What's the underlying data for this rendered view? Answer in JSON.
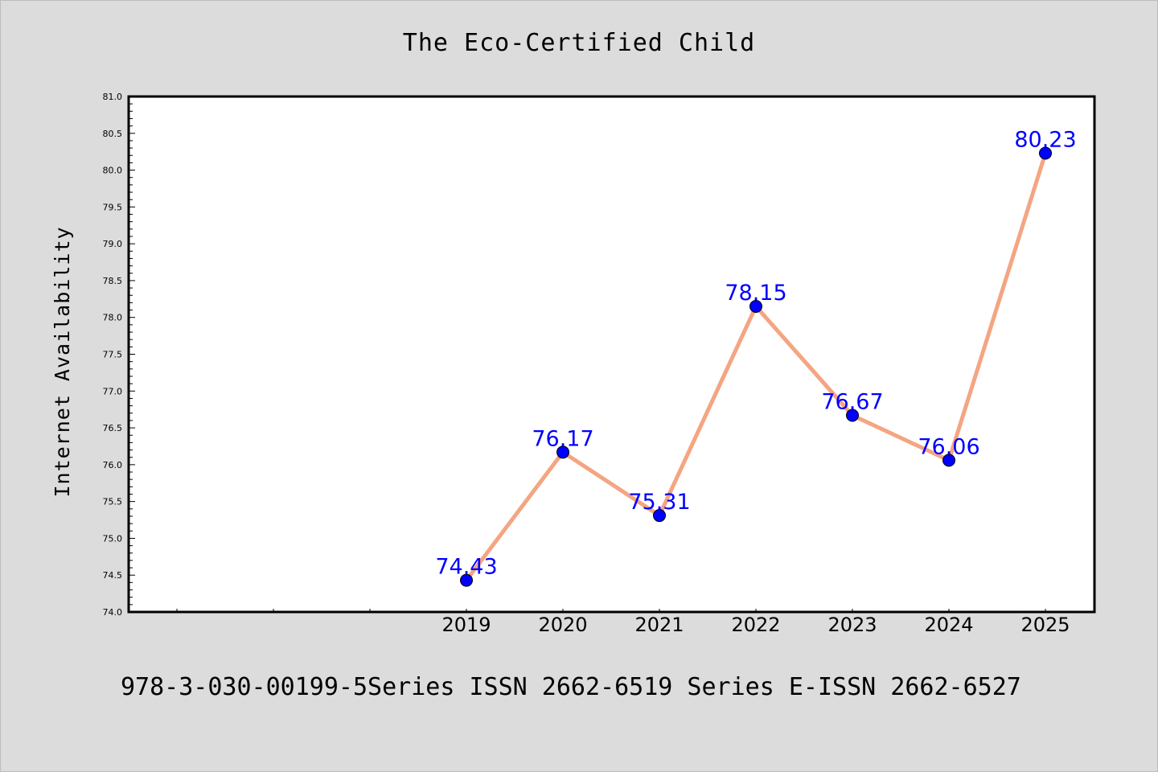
{
  "chart_data": {
    "type": "line",
    "title": "The Eco-Certified Child",
    "xlabel": "",
    "ylabel": "Internet Availability",
    "x": [
      "2019",
      "2020",
      "2021",
      "2022",
      "2023",
      "2024",
      "2025"
    ],
    "series": [
      {
        "values": [
          74.43,
          76.17,
          75.31,
          78.15,
          76.67,
          76.06,
          80.23
        ]
      }
    ],
    "data_labels": [
      "74.43",
      "76.17",
      "75.31",
      "78.15",
      "76.67",
      "76.06",
      "80.23"
    ],
    "ylim": [
      74.0,
      81.0
    ],
    "yticks": [
      "74.0",
      "74.5",
      "75.0",
      "75.5",
      "76.0",
      "76.5",
      "77.0",
      "77.5",
      "78.0",
      "78.5",
      "79.0",
      "79.5",
      "80.0",
      "80.5",
      "81.0"
    ],
    "x_slots": 10,
    "x_first_data_slot": 3,
    "grid": false,
    "legend": "none",
    "colors": {
      "line": "#f4a582",
      "marker": "#0000ff",
      "label": "#0000ff",
      "background": "#dcdcdc",
      "plot_bg": "#ffffff"
    }
  },
  "footer_text": "978-3-030-00199-5Series ISSN 2662-6519 Series E-ISSN 2662-6527"
}
